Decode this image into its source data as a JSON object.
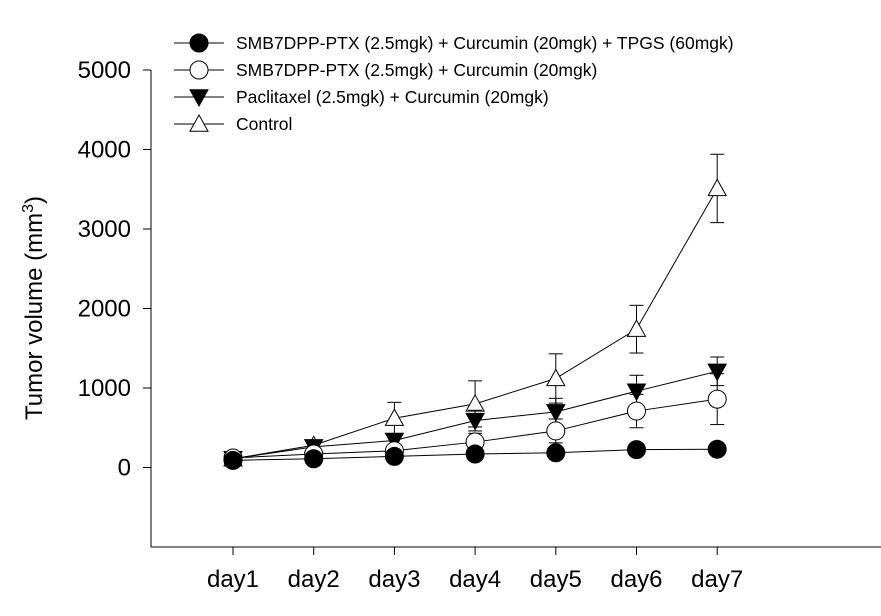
{
  "chart_data": {
    "type": "line",
    "title": "",
    "xlabel": "",
    "ylabel": "Tumor volume (mm",
    "ylabel_superscript": "3",
    "ylabel_close": ")",
    "categories": [
      "day1",
      "day2",
      "day3",
      "day4",
      "day5",
      "day6",
      "day7"
    ],
    "ylim": [
      -1000,
      5000
    ],
    "yticks": [
      "0",
      "1000",
      "2000",
      "3000",
      "4000",
      "5000"
    ],
    "ytick_values": [
      0,
      1000,
      2000,
      3000,
      4000,
      5000
    ],
    "grid": false,
    "legend_position": "top",
    "series": [
      {
        "name": "SMB7DPP-PTX (2.5mgk) + Curcumin (20mgk) + TPGS (60mgk)",
        "marker": "circle-filled",
        "values": [
          90,
          110,
          140,
          170,
          185,
          225,
          230
        ],
        "errors": [
          20,
          20,
          25,
          25,
          25,
          25,
          25
        ]
      },
      {
        "name": "SMB7DPP-PTX (2.5mgk) + Curcumin (20mgk)",
        "marker": "circle-open",
        "values": [
          120,
          170,
          210,
          320,
          460,
          710,
          860
        ],
        "errors": [
          20,
          40,
          70,
          110,
          150,
          210,
          320
        ]
      },
      {
        "name": "Paclitaxel (2.5mgk) + Curcumin (20mgk)",
        "marker": "triangle-down-filled",
        "values": [
          110,
          260,
          340,
          590,
          700,
          960,
          1210
        ],
        "errors": [
          20,
          40,
          80,
          130,
          170,
          200,
          180
        ]
      },
      {
        "name": "Control",
        "marker": "triangle-up-open",
        "values": [
          110,
          280,
          620,
          800,
          1120,
          1740,
          3510
        ],
        "errors": [
          20,
          40,
          200,
          290,
          310,
          300,
          430
        ]
      }
    ]
  }
}
